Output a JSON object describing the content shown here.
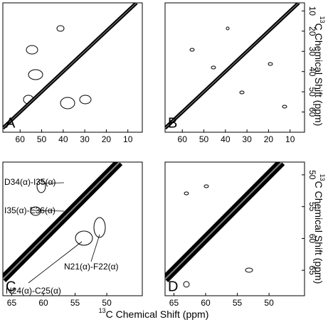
{
  "chart_data": [
    {
      "type": "contour",
      "panel_label": "A",
      "xlim": [
        68,
        3.3
      ],
      "ylim": [
        6,
        70
      ],
      "xticks": [
        60,
        50,
        40,
        30,
        20,
        10
      ]
    },
    {
      "type": "contour",
      "panel_label": "B",
      "xlim": [
        68,
        3.3
      ],
      "ylim": [
        6,
        70
      ],
      "xticks": [
        60,
        50,
        40,
        30,
        20,
        10
      ],
      "yticks": [
        10,
        20,
        30,
        40,
        50,
        60
      ]
    },
    {
      "type": "contour",
      "panel_label": "C",
      "xlim": [
        66.4,
        44.4
      ],
      "ylim": [
        48,
        69
      ],
      "xticks": [
        65,
        60,
        55,
        50
      ],
      "annotations": [
        "D34(α)-I35(α)",
        "I35(α)-E36(α)",
        "N21(α)-F22(α)",
        "N24(α)-C25(α)"
      ]
    },
    {
      "type": "contour",
      "panel_label": "D",
      "xlim": [
        66.4,
        44.4
      ],
      "ylim": [
        48,
        69
      ],
      "xticks": [
        65,
        60,
        55,
        50
      ],
      "yticks": [
        50,
        55,
        60,
        65
      ]
    }
  ],
  "axis_label": {
    "superscript": "13",
    "text": "C Chemical Shift (ppm)"
  }
}
